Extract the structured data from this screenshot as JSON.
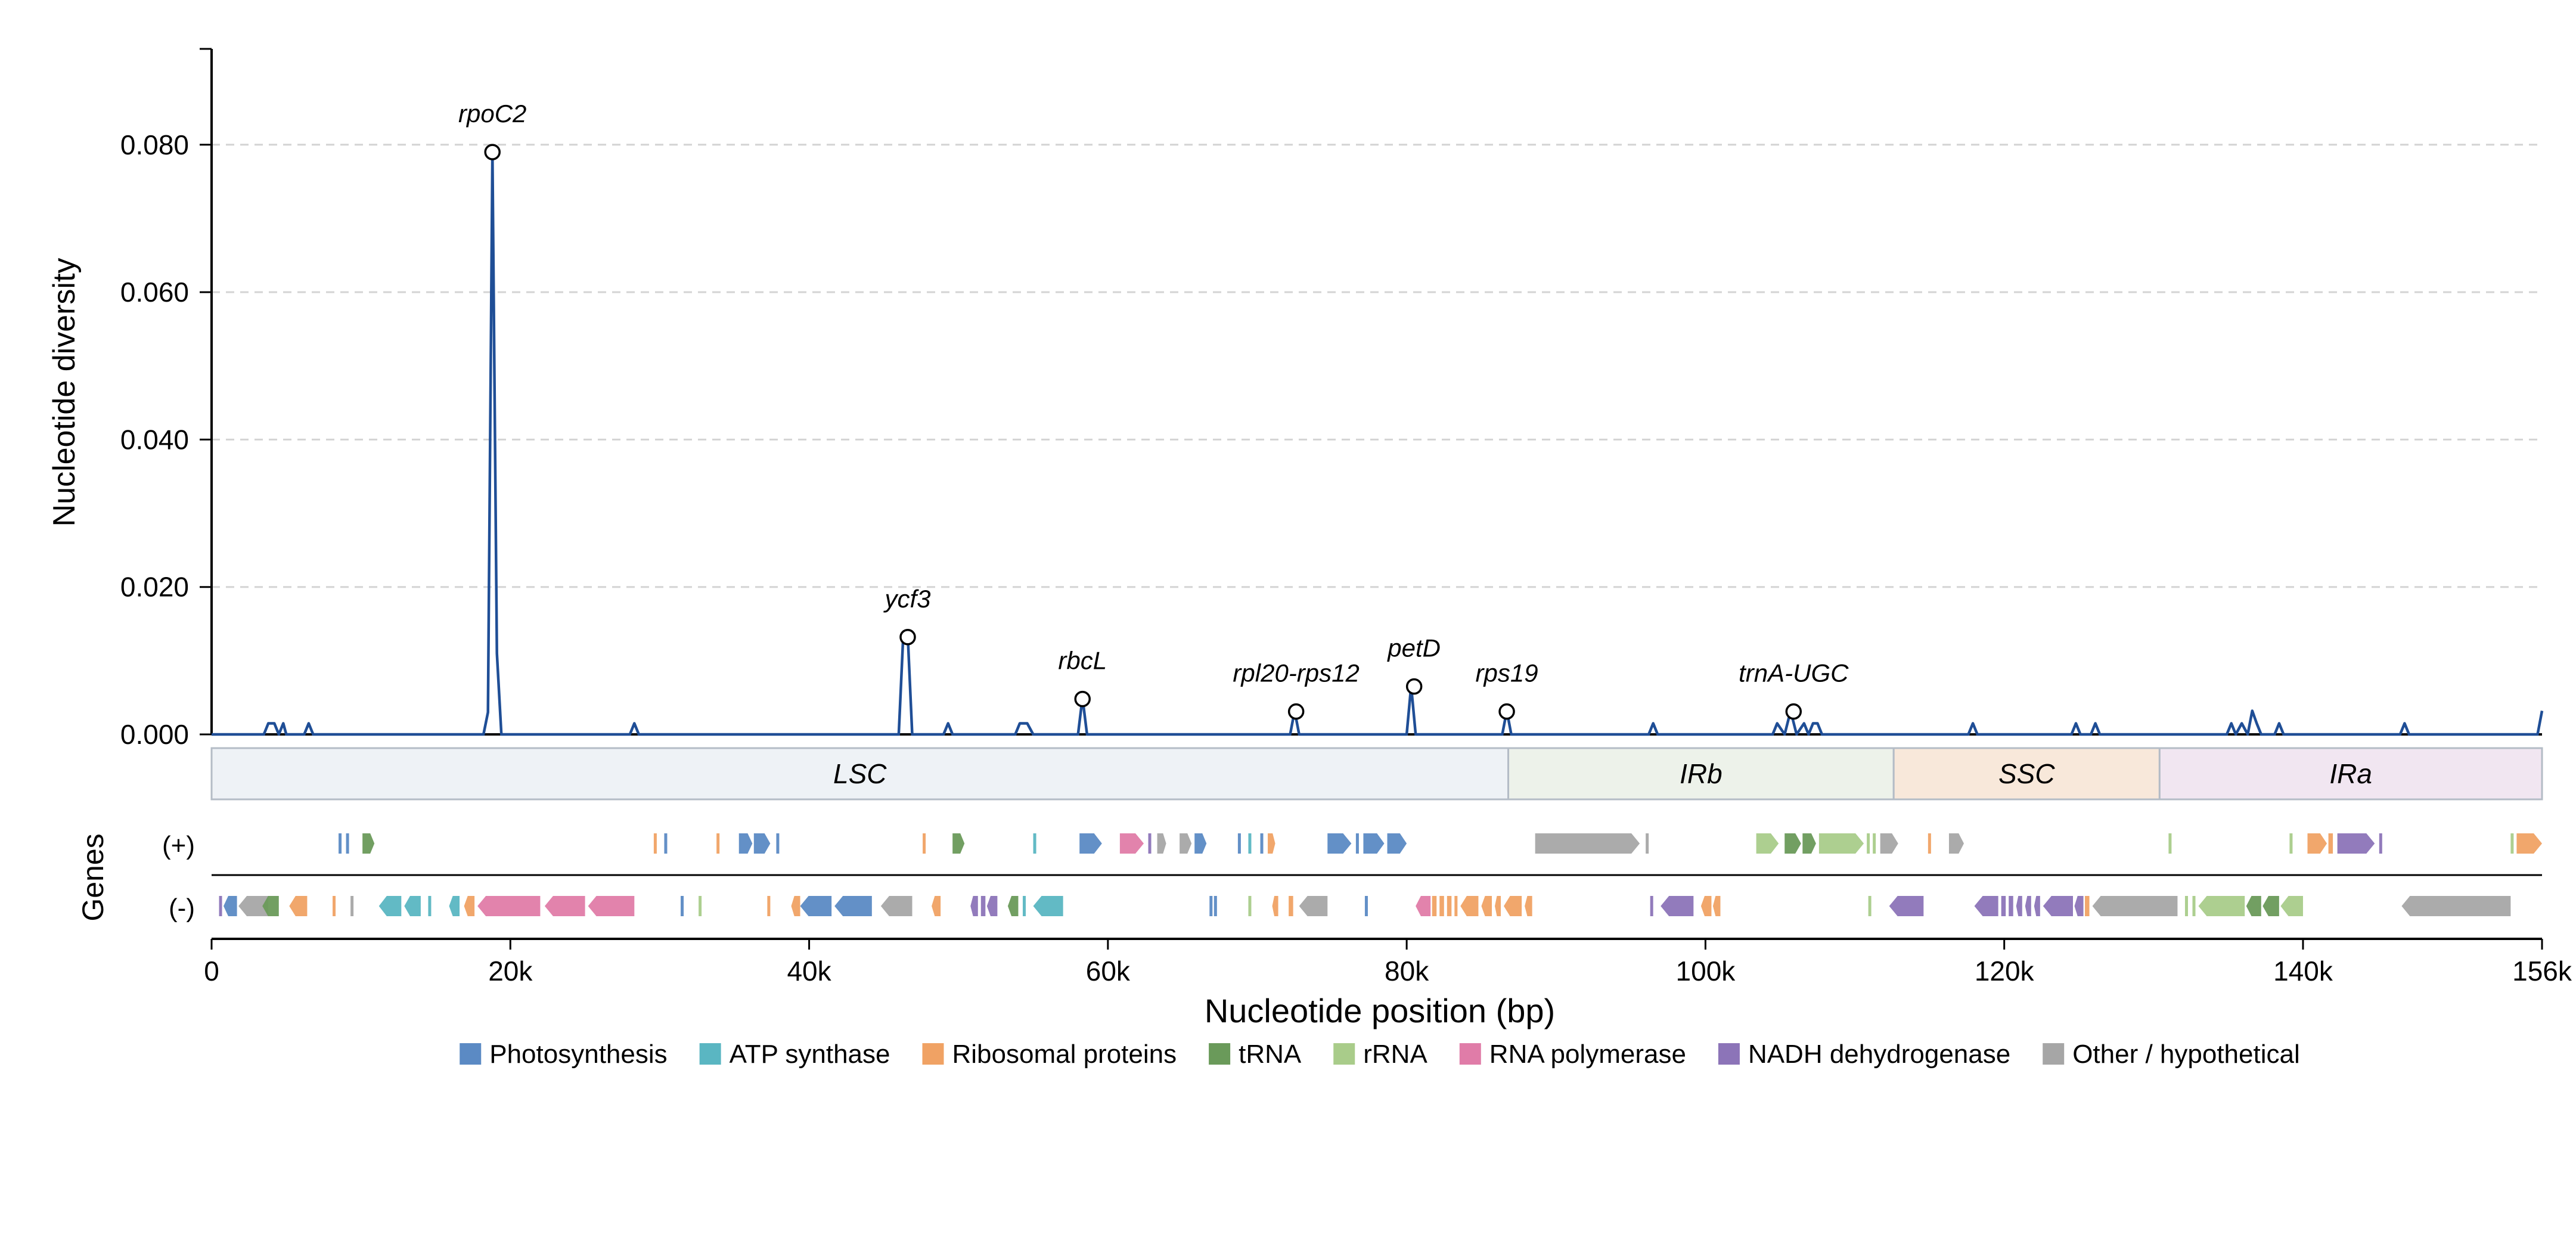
{
  "chart_data": {
    "type": "line",
    "title": "",
    "xlabel": "Nucleotide position (bp)",
    "ylabel": "Nucleotide diversity",
    "genes_label": "Genes",
    "xlim": [
      0,
      156000
    ],
    "ylim": [
      0,
      0.093
    ],
    "grid": true,
    "legend_placement": "bottom-center",
    "x_ticks": [
      {
        "value": 0,
        "label": "0"
      },
      {
        "value": 20000,
        "label": "20k"
      },
      {
        "value": 40000,
        "label": "40k"
      },
      {
        "value": 60000,
        "label": "60k"
      },
      {
        "value": 80000,
        "label": "80k"
      },
      {
        "value": 100000,
        "label": "100k"
      },
      {
        "value": 120000,
        "label": "120k"
      },
      {
        "value": 140000,
        "label": "140k"
      },
      {
        "value": 156000,
        "label": "156k"
      }
    ],
    "y_ticks": [
      {
        "value": 0,
        "label": "0.000"
      },
      {
        "value": 0.02,
        "label": "0.020"
      },
      {
        "value": 0.04,
        "label": "0.040"
      },
      {
        "value": 0.06,
        "label": "0.060"
      },
      {
        "value": 0.08,
        "label": "0.080"
      }
    ],
    "series": [
      {
        "color": "#1f4e96",
        "x": [
          0,
          3500,
          3800,
          4200,
          4500,
          4800,
          5000,
          6200,
          6500,
          6800,
          18200,
          18500,
          18800,
          19100,
          19400,
          28000,
          28300,
          28600,
          46000,
          46300,
          46600,
          46900,
          49000,
          49300,
          49600,
          53800,
          54100,
          54600,
          55000,
          58000,
          58300,
          58600,
          72200,
          72500,
          72800,
          80000,
          80300,
          80600,
          86400,
          86700,
          87000,
          96200,
          96500,
          96800,
          104500,
          104800,
          105300,
          105700,
          106100,
          106600,
          106900,
          107200,
          107500,
          107800,
          117600,
          117900,
          118200,
          124500,
          124800,
          125100,
          125800,
          126100,
          126400,
          134900,
          135200,
          135500,
          135900,
          136300,
          136600,
          136900,
          137200,
          138100,
          138400,
          138700,
          146500,
          146800,
          147100,
          155700,
          156000
        ],
        "y": [
          0,
          0,
          0.0015,
          0.0015,
          0,
          0.0015,
          0,
          0,
          0.0015,
          0,
          0,
          0.003,
          0.079,
          0.011,
          0,
          0,
          0.0015,
          0,
          0,
          0.0135,
          0.0135,
          0,
          0,
          0.0015,
          0,
          0,
          0.0015,
          0.0015,
          0,
          0,
          0.005,
          0,
          0,
          0.0032,
          0,
          0,
          0.0066,
          0,
          0,
          0.0032,
          0,
          0,
          0.0015,
          0,
          0,
          0.0015,
          0,
          0.0032,
          0,
          0.0015,
          0,
          0.0015,
          0.0015,
          0,
          0,
          0.0015,
          0,
          0,
          0.0015,
          0,
          0,
          0.0015,
          0,
          0,
          0.0015,
          0,
          0.0015,
          0,
          0.0032,
          0.0015,
          0,
          0,
          0.0015,
          0,
          0,
          0.0015,
          0,
          0,
          0.0032
        ]
      }
    ],
    "annotations": [
      {
        "label": "rpoC2",
        "x": 18800,
        "y": 0.079
      },
      {
        "label": "ycf3",
        "x": 46600,
        "y": 0.0132
      },
      {
        "label": "rbcL",
        "x": 58300,
        "y": 0.0048
      },
      {
        "label": "rpl20-rps12",
        "x": 72600,
        "y": 0.0031
      },
      {
        "label": "petD",
        "x": 80500,
        "y": 0.0065
      },
      {
        "label": "rps19",
        "x": 86700,
        "y": 0.0031
      },
      {
        "label": "trnA-UGC",
        "x": 105900,
        "y": 0.0031
      }
    ],
    "regions": [
      {
        "name": "LSC",
        "start": 0,
        "end": 86800,
        "color": "#eef2f6"
      },
      {
        "name": "IRb",
        "start": 86800,
        "end": 112600,
        "color": "#edf2ea"
      },
      {
        "name": "SSC",
        "start": 112600,
        "end": 130400,
        "color": "#f8e8da"
      },
      {
        "name": "IRa",
        "start": 130400,
        "end": 156000,
        "color": "#f1e6f1"
      }
    ],
    "strand_labels": {
      "plus": "(+)",
      "minus": "(-)"
    },
    "categories": [
      {
        "name": "Photosynthesis",
        "color": "#5b8ac4"
      },
      {
        "name": "ATP synthase",
        "color": "#5ab6c2"
      },
      {
        "name": "Ribosomal proteins",
        "color": "#f0a264"
      },
      {
        "name": "tRNA",
        "color": "#6a9a5a"
      },
      {
        "name": "rRNA",
        "color": "#a9cc8a"
      },
      {
        "name": "RNA polymerase",
        "color": "#e07ca8"
      },
      {
        "name": "NADH dehydrogenase",
        "color": "#8c74b8"
      },
      {
        "name": "Other / hypothetical",
        "color": "#a6a6a6"
      }
    ],
    "genes": [
      {
        "start": 8500,
        "end": 8700,
        "strand": "+",
        "cat": 0
      },
      {
        "start": 9000,
        "end": 9200,
        "strand": "+",
        "cat": 0
      },
      {
        "start": 10100,
        "end": 10900,
        "strand": "+",
        "cat": 3
      },
      {
        "start": 29600,
        "end": 29800,
        "strand": "+",
        "cat": 2
      },
      {
        "start": 30300,
        "end": 30500,
        "strand": "+",
        "cat": 0
      },
      {
        "start": 33800,
        "end": 34000,
        "strand": "+",
        "cat": 2
      },
      {
        "start": 35300,
        "end": 36200,
        "strand": "+",
        "cat": 0
      },
      {
        "start": 36300,
        "end": 37400,
        "strand": "+",
        "cat": 0
      },
      {
        "start": 37800,
        "end": 38000,
        "strand": "+",
        "cat": 0
      },
      {
        "start": 47600,
        "end": 47800,
        "strand": "+",
        "cat": 2
      },
      {
        "start": 49600,
        "end": 50400,
        "strand": "+",
        "cat": 3
      },
      {
        "start": 55000,
        "end": 55200,
        "strand": "+",
        "cat": 1
      },
      {
        "start": 58100,
        "end": 59600,
        "strand": "+",
        "cat": 0
      },
      {
        "start": 60800,
        "end": 62400,
        "strand": "+",
        "cat": 5
      },
      {
        "start": 62700,
        "end": 62900,
        "strand": "+",
        "cat": 6
      },
      {
        "start": 63300,
        "end": 63900,
        "strand": "+",
        "cat": 7
      },
      {
        "start": 64800,
        "end": 65600,
        "strand": "+",
        "cat": 7
      },
      {
        "start": 65800,
        "end": 66600,
        "strand": "+",
        "cat": 0
      },
      {
        "start": 68700,
        "end": 68900,
        "strand": "+",
        "cat": 0
      },
      {
        "start": 69400,
        "end": 69600,
        "strand": "+",
        "cat": 1
      },
      {
        "start": 70200,
        "end": 70400,
        "strand": "+",
        "cat": 0
      },
      {
        "start": 70700,
        "end": 71200,
        "strand": "+",
        "cat": 2
      },
      {
        "start": 74700,
        "end": 76300,
        "strand": "+",
        "cat": 0
      },
      {
        "start": 76600,
        "end": 76800,
        "strand": "+",
        "cat": 0
      },
      {
        "start": 77100,
        "end": 78500,
        "strand": "+",
        "cat": 0
      },
      {
        "start": 78700,
        "end": 80000,
        "strand": "+",
        "cat": 0
      },
      {
        "start": 88600,
        "end": 95600,
        "strand": "+",
        "cat": 7
      },
      {
        "start": 96000,
        "end": 96200,
        "strand": "+",
        "cat": 7
      },
      {
        "start": 103400,
        "end": 104900,
        "strand": "+",
        "cat": 4
      },
      {
        "start": 105300,
        "end": 106400,
        "strand": "+",
        "cat": 3
      },
      {
        "start": 106500,
        "end": 107400,
        "strand": "+",
        "cat": 3
      },
      {
        "start": 107600,
        "end": 110600,
        "strand": "+",
        "cat": 4
      },
      {
        "start": 110800,
        "end": 111000,
        "strand": "+",
        "cat": 4
      },
      {
        "start": 111200,
        "end": 111400,
        "strand": "+",
        "cat": 4
      },
      {
        "start": 111700,
        "end": 112900,
        "strand": "+",
        "cat": 7
      },
      {
        "start": 114900,
        "end": 115100,
        "strand": "+",
        "cat": 2
      },
      {
        "start": 116300,
        "end": 117300,
        "strand": "+",
        "cat": 7
      },
      {
        "start": 131000,
        "end": 131200,
        "strand": "+",
        "cat": 4
      },
      {
        "start": 139100,
        "end": 139300,
        "strand": "+",
        "cat": 4
      },
      {
        "start": 140300,
        "end": 141600,
        "strand": "+",
        "cat": 2
      },
      {
        "start": 141700,
        "end": 142000,
        "strand": "+",
        "cat": 2
      },
      {
        "start": 142300,
        "end": 144800,
        "strand": "+",
        "cat": 6
      },
      {
        "start": 145100,
        "end": 145300,
        "strand": "+",
        "cat": 6
      },
      {
        "start": 153900,
        "end": 154100,
        "strand": "+",
        "cat": 4
      },
      {
        "start": 154300,
        "end": 156000,
        "strand": "+",
        "cat": 2
      },
      {
        "start": 500,
        "end": 700,
        "strand": "-",
        "cat": 6
      },
      {
        "start": 800,
        "end": 1700,
        "strand": "-",
        "cat": 0
      },
      {
        "start": 1800,
        "end": 3800,
        "strand": "-",
        "cat": 7
      },
      {
        "start": 3400,
        "end": 4500,
        "strand": "-",
        "cat": 3
      },
      {
        "start": 5200,
        "end": 6400,
        "strand": "-",
        "cat": 2
      },
      {
        "start": 8100,
        "end": 8300,
        "strand": "-",
        "cat": 2
      },
      {
        "start": 9300,
        "end": 9500,
        "strand": "-",
        "cat": 7
      },
      {
        "start": 11200,
        "end": 12700,
        "strand": "-",
        "cat": 1
      },
      {
        "start": 12900,
        "end": 14000,
        "strand": "-",
        "cat": 1
      },
      {
        "start": 14500,
        "end": 14700,
        "strand": "-",
        "cat": 1
      },
      {
        "start": 15900,
        "end": 16600,
        "strand": "-",
        "cat": 1
      },
      {
        "start": 16900,
        "end": 17600,
        "strand": "-",
        "cat": 2
      },
      {
        "start": 17800,
        "end": 22000,
        "strand": "-",
        "cat": 5
      },
      {
        "start": 22300,
        "end": 25000,
        "strand": "-",
        "cat": 5
      },
      {
        "start": 25200,
        "end": 28300,
        "strand": "-",
        "cat": 5
      },
      {
        "start": 31400,
        "end": 31600,
        "strand": "-",
        "cat": 0
      },
      {
        "start": 32600,
        "end": 32800,
        "strand": "-",
        "cat": 4
      },
      {
        "start": 37200,
        "end": 37400,
        "strand": "-",
        "cat": 2
      },
      {
        "start": 38800,
        "end": 39400,
        "strand": "-",
        "cat": 2
      },
      {
        "start": 39400,
        "end": 41500,
        "strand": "-",
        "cat": 0
      },
      {
        "start": 41700,
        "end": 44200,
        "strand": "-",
        "cat": 0
      },
      {
        "start": 44800,
        "end": 46900,
        "strand": "-",
        "cat": 7
      },
      {
        "start": 48200,
        "end": 48800,
        "strand": "-",
        "cat": 2
      },
      {
        "start": 50800,
        "end": 51300,
        "strand": "-",
        "cat": 6
      },
      {
        "start": 51500,
        "end": 51800,
        "strand": "-",
        "cat": 6
      },
      {
        "start": 51900,
        "end": 52600,
        "strand": "-",
        "cat": 6
      },
      {
        "start": 53300,
        "end": 54000,
        "strand": "-",
        "cat": 3
      },
      {
        "start": 54300,
        "end": 54500,
        "strand": "-",
        "cat": 1
      },
      {
        "start": 55000,
        "end": 57000,
        "strand": "-",
        "cat": 1
      },
      {
        "start": 66800,
        "end": 67000,
        "strand": "-",
        "cat": 0
      },
      {
        "start": 67100,
        "end": 67300,
        "strand": "-",
        "cat": 0
      },
      {
        "start": 69400,
        "end": 69600,
        "strand": "-",
        "cat": 4
      },
      {
        "start": 71000,
        "end": 71400,
        "strand": "-",
        "cat": 2
      },
      {
        "start": 72100,
        "end": 72400,
        "strand": "-",
        "cat": 2
      },
      {
        "start": 72800,
        "end": 74700,
        "strand": "-",
        "cat": 7
      },
      {
        "start": 77200,
        "end": 77400,
        "strand": "-",
        "cat": 0
      },
      {
        "start": 80600,
        "end": 81600,
        "strand": "-",
        "cat": 5
      },
      {
        "start": 81700,
        "end": 82000,
        "strand": "-",
        "cat": 2
      },
      {
        "start": 82200,
        "end": 82500,
        "strand": "-",
        "cat": 2
      },
      {
        "start": 82700,
        "end": 83000,
        "strand": "-",
        "cat": 2
      },
      {
        "start": 83200,
        "end": 83400,
        "strand": "-",
        "cat": 2
      },
      {
        "start": 83600,
        "end": 84800,
        "strand": "-",
        "cat": 2
      },
      {
        "start": 85000,
        "end": 85700,
        "strand": "-",
        "cat": 2
      },
      {
        "start": 85900,
        "end": 86300,
        "strand": "-",
        "cat": 2
      },
      {
        "start": 86500,
        "end": 87700,
        "strand": "-",
        "cat": 2
      },
      {
        "start": 87900,
        "end": 88400,
        "strand": "-",
        "cat": 2
      },
      {
        "start": 96300,
        "end": 96500,
        "strand": "-",
        "cat": 6
      },
      {
        "start": 97000,
        "end": 99200,
        "strand": "-",
        "cat": 6
      },
      {
        "start": 99700,
        "end": 100400,
        "strand": "-",
        "cat": 2
      },
      {
        "start": 100500,
        "end": 101000,
        "strand": "-",
        "cat": 2
      },
      {
        "start": 110900,
        "end": 111100,
        "strand": "-",
        "cat": 4
      },
      {
        "start": 112300,
        "end": 114600,
        "strand": "-",
        "cat": 6
      },
      {
        "start": 118000,
        "end": 119600,
        "strand": "-",
        "cat": 6
      },
      {
        "start": 119800,
        "end": 120100,
        "strand": "-",
        "cat": 6
      },
      {
        "start": 120300,
        "end": 120600,
        "strand": "-",
        "cat": 6
      },
      {
        "start": 120800,
        "end": 121200,
        "strand": "-",
        "cat": 6
      },
      {
        "start": 121400,
        "end": 121800,
        "strand": "-",
        "cat": 6
      },
      {
        "start": 122000,
        "end": 122400,
        "strand": "-",
        "cat": 6
      },
      {
        "start": 122600,
        "end": 124600,
        "strand": "-",
        "cat": 6
      },
      {
        "start": 124700,
        "end": 125300,
        "strand": "-",
        "cat": 6
      },
      {
        "start": 125400,
        "end": 125700,
        "strand": "-",
        "cat": 2
      },
      {
        "start": 125900,
        "end": 131600,
        "strand": "-",
        "cat": 7
      },
      {
        "start": 132100,
        "end": 132300,
        "strand": "-",
        "cat": 4
      },
      {
        "start": 132600,
        "end": 132800,
        "strand": "-",
        "cat": 4
      },
      {
        "start": 133000,
        "end": 136100,
        "strand": "-",
        "cat": 4
      },
      {
        "start": 136200,
        "end": 137200,
        "strand": "-",
        "cat": 3
      },
      {
        "start": 137300,
        "end": 138400,
        "strand": "-",
        "cat": 3
      },
      {
        "start": 138500,
        "end": 140000,
        "strand": "-",
        "cat": 4
      },
      {
        "start": 146600,
        "end": 153900,
        "strand": "-",
        "cat": 7
      }
    ]
  }
}
